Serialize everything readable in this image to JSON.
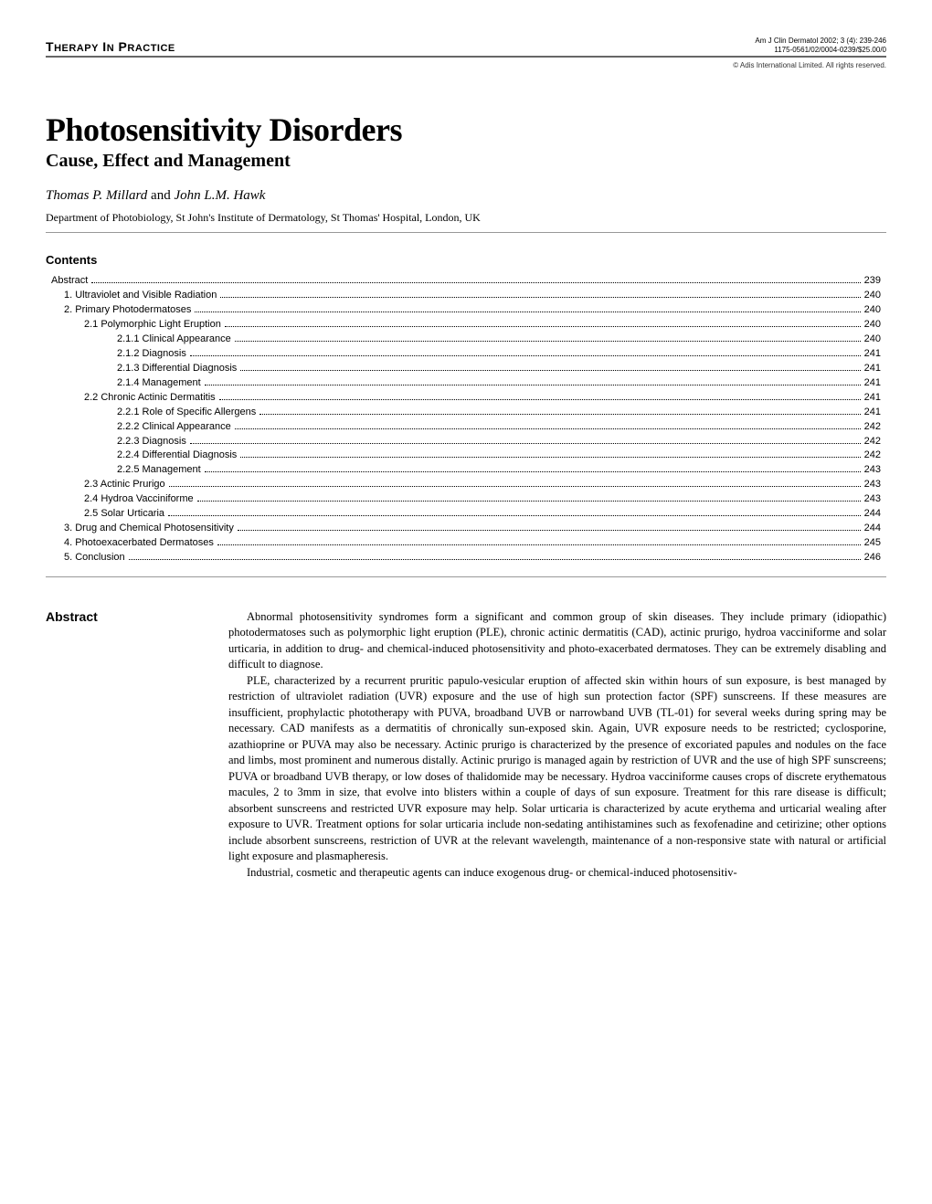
{
  "header": {
    "section_label_prefix": "T",
    "section_label_word1": "HERAPY",
    "section_label_in": " I",
    "section_label_n": "N",
    "section_label_prefix2": " P",
    "section_label_word2": "RACTICE",
    "citation_line1": "Am J Clin Dermatol 2002; 3 (4): 239-246",
    "citation_line2": "1175-0561/02/0004-0239/$25.00/0",
    "copyright": "© Adis International Limited. All rights reserved."
  },
  "title": {
    "main": "Photosensitivity Disorders",
    "sub": "Cause, Effect and Management",
    "author1": "Thomas P. Millard",
    "and": " and ",
    "author2": "John L.M. Hawk",
    "affiliation": "Department of Photobiology, St John's Institute of Dermatology, St Thomas' Hospital, London, UK"
  },
  "contents_heading": "Contents",
  "toc": [
    {
      "indent": 0,
      "label": "Abstract",
      "page": "239"
    },
    {
      "indent": 1,
      "label": "1. Ultraviolet and Visible Radiation",
      "page": "240"
    },
    {
      "indent": 1,
      "label": "2. Primary Photodermatoses",
      "page": "240"
    },
    {
      "indent": 2,
      "label": "2.1 Polymorphic Light Eruption",
      "page": "240"
    },
    {
      "indent": 3,
      "label": "2.1.1 Clinical Appearance",
      "page": "240"
    },
    {
      "indent": 3,
      "label": "2.1.2 Diagnosis",
      "page": "241"
    },
    {
      "indent": 3,
      "label": "2.1.3 Differential Diagnosis",
      "page": "241"
    },
    {
      "indent": 3,
      "label": "2.1.4 Management",
      "page": "241"
    },
    {
      "indent": 2,
      "label": "2.2 Chronic Actinic Dermatitis",
      "page": "241"
    },
    {
      "indent": 3,
      "label": "2.2.1 Role of Specific Allergens",
      "page": "241"
    },
    {
      "indent": 3,
      "label": "2.2.2 Clinical Appearance",
      "page": "242"
    },
    {
      "indent": 3,
      "label": "2.2.3 Diagnosis",
      "page": "242"
    },
    {
      "indent": 3,
      "label": "2.2.4 Differential Diagnosis",
      "page": "242"
    },
    {
      "indent": 3,
      "label": "2.2.5 Management",
      "page": "243"
    },
    {
      "indent": 2,
      "label": "2.3 Actinic Prurigo",
      "page": "243"
    },
    {
      "indent": 2,
      "label": "2.4 Hydroa Vacciniforme",
      "page": "243"
    },
    {
      "indent": 2,
      "label": "2.5 Solar Urticaria",
      "page": "244"
    },
    {
      "indent": 1,
      "label": "3. Drug and Chemical Photosensitivity",
      "page": "244"
    },
    {
      "indent": 1,
      "label": "4. Photoexacerbated Dermatoses",
      "page": "245"
    },
    {
      "indent": 1,
      "label": "5. Conclusion",
      "page": "246"
    }
  ],
  "abstract": {
    "label": "Abstract",
    "p1": "Abnormal photosensitivity syndromes form a significant and common group of skin diseases. They include primary (idiopathic) photodermatoses such as polymorphic light eruption (PLE), chronic actinic dermatitis (CAD), actinic prurigo, hydroa vacciniforme and solar urticaria, in addition to drug- and chemical-induced photosensitivity and photo-exacerbated dermatoses. They can be extremely disabling and difficult to diagnose.",
    "p2": "PLE, characterized by a recurrent pruritic papulo-vesicular eruption of affected skin within hours of sun exposure, is best managed by restriction of ultraviolet radiation (UVR) exposure and the use of high sun protection factor (SPF) sunscreens. If these measures are insufficient, prophylactic phototherapy with PUVA, broadband UVB or narrowband UVB (TL-01) for several weeks during spring may be necessary. CAD manifests as a dermatitis of chronically sun-exposed skin. Again, UVR exposure needs to be restricted; cyclosporine, azathioprine or PUVA may also be necessary. Actinic prurigo is characterized by the presence of excoriated papules and nodules on the face and limbs, most prominent and numerous distally. Actinic prurigo is managed again by restriction of UVR and the use of high SPF sunscreens; PUVA or broadband UVB therapy, or low doses of thalidomide may be necessary. Hydroa vacciniforme causes crops of discrete erythematous macules, 2 to 3mm in size, that evolve into blisters within a couple of days of sun exposure. Treatment for this rare disease is difficult; absorbent sunscreens and restricted UVR exposure may help. Solar urticaria is characterized by acute erythema and urticarial wealing after exposure to UVR. Treatment options for solar urticaria include non-sedating antihistamines such as fexofenadine and cetirizine; other options include absorbent sunscreens, restriction of UVR at the relevant wavelength, maintenance of a non-responsive state with natural or artificial light exposure and plasmapheresis.",
    "p3": "Industrial, cosmetic and therapeutic agents can induce exogenous drug- or chemical-induced photosensitiv-"
  }
}
